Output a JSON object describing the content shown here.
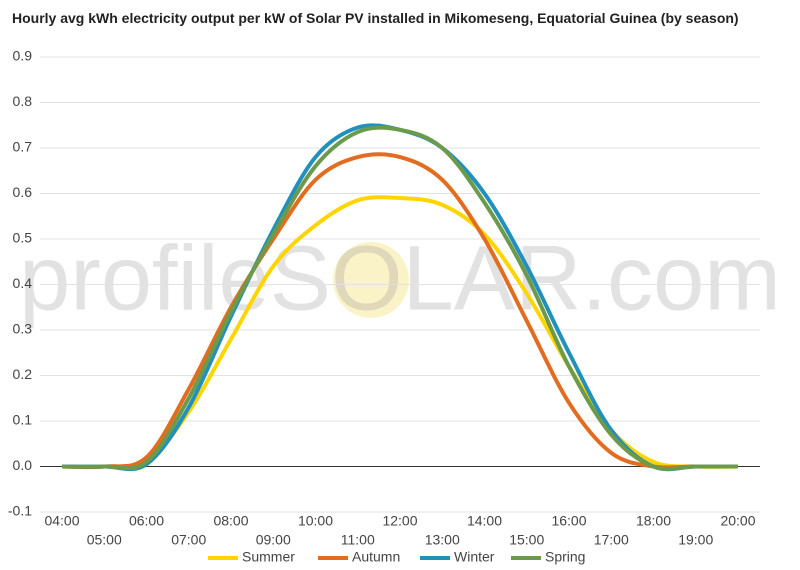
{
  "chart_data": {
    "type": "line",
    "title": "Hourly avg kWh electricity output per kW of Solar PV installed in Mikomeseng, Equatorial Guinea (by season)",
    "watermark": "profileSOLAR.com",
    "categories": [
      "04:00",
      "05:00",
      "06:00",
      "07:00",
      "08:00",
      "09:00",
      "10:00",
      "11:00",
      "12:00",
      "13:00",
      "14:00",
      "15:00",
      "16:00",
      "17:00",
      "18:00",
      "19:00",
      "20:00"
    ],
    "series": [
      {
        "name": "Summer",
        "color": "#ffd500",
        "values": [
          0,
          0,
          0.01,
          0.12,
          0.28,
          0.44,
          0.53,
          0.585,
          0.59,
          0.575,
          0.51,
          0.38,
          0.22,
          0.08,
          0.01,
          0,
          0
        ]
      },
      {
        "name": "Autumn",
        "color": "#e26d20",
        "values": [
          0,
          0,
          0.02,
          0.17,
          0.35,
          0.5,
          0.63,
          0.68,
          0.68,
          0.63,
          0.5,
          0.32,
          0.14,
          0.03,
          0,
          0,
          0
        ]
      },
      {
        "name": "Winter",
        "color": "#2190bd",
        "values": [
          0,
          0,
          0.005,
          0.13,
          0.33,
          0.52,
          0.68,
          0.745,
          0.74,
          0.7,
          0.6,
          0.44,
          0.25,
          0.08,
          0,
          0,
          0
        ]
      },
      {
        "name": "Spring",
        "color": "#6b9a4a",
        "values": [
          0,
          0,
          0.01,
          0.15,
          0.34,
          0.51,
          0.66,
          0.735,
          0.74,
          0.7,
          0.58,
          0.42,
          0.22,
          0.07,
          0,
          0,
          0
        ]
      }
    ],
    "ylim": [
      -0.1,
      0.9
    ],
    "yticks": [
      -0.1,
      {
        "value": 0,
        "label": "0.0"
      },
      0.1,
      0.2,
      0.3,
      0.4,
      0.5,
      0.6,
      0.7,
      0.8,
      0.9
    ],
    "grid": true,
    "legend": "bottom"
  }
}
